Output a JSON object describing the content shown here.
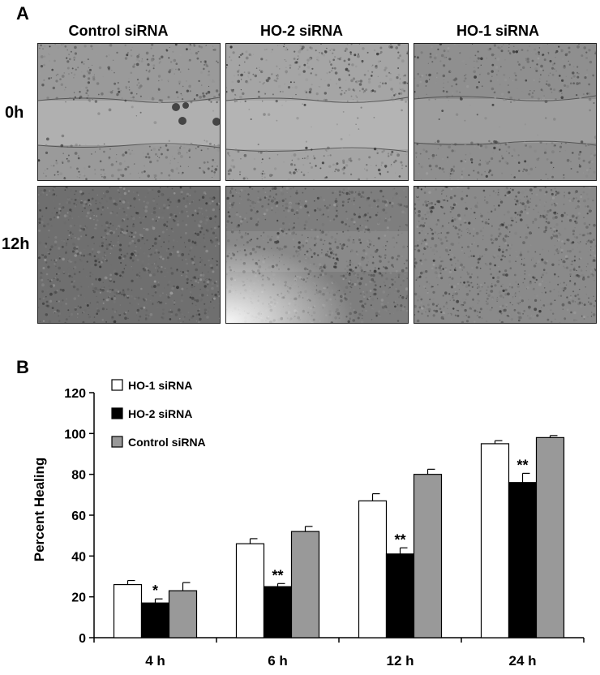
{
  "panel_a": {
    "letter": "A",
    "columns": [
      "Control siRNA",
      "HO-2 siRNA",
      "HO-1 siRNA"
    ],
    "rows": [
      "0h",
      "12h"
    ]
  },
  "panel_b": {
    "letter": "B"
  },
  "chart_data": {
    "type": "bar",
    "categories": [
      "4 h",
      "6 h",
      "12 h",
      "24 h"
    ],
    "ylabel": "Percent Healing",
    "xlabel": "",
    "ylim": [
      0,
      120
    ],
    "yticks": [
      0,
      20,
      40,
      60,
      80,
      100,
      120
    ],
    "legend_position": "top-left",
    "grid": false,
    "series": [
      {
        "name": "HO-1 siRNA",
        "color": "#ffffff",
        "values": [
          26,
          46,
          67,
          95
        ],
        "errors": [
          2,
          2.5,
          3.5,
          1.5
        ]
      },
      {
        "name": "HO-2 siRNA",
        "color": "#000000",
        "values": [
          17,
          25,
          41,
          76
        ],
        "errors": [
          2,
          1.5,
          3,
          4.5
        ]
      },
      {
        "name": "Control siRNA",
        "color": "#999999",
        "values": [
          23,
          52,
          80,
          98
        ],
        "errors": [
          4,
          2.5,
          2.5,
          1
        ]
      }
    ],
    "annotations": [
      {
        "category": "4 h",
        "series": "HO-2 siRNA",
        "text": "*"
      },
      {
        "category": "6 h",
        "series": "HO-2 siRNA",
        "text": "**"
      },
      {
        "category": "12 h",
        "series": "HO-2 siRNA",
        "text": "**"
      },
      {
        "category": "24 h",
        "series": "HO-2 siRNA",
        "text": "**"
      }
    ]
  }
}
